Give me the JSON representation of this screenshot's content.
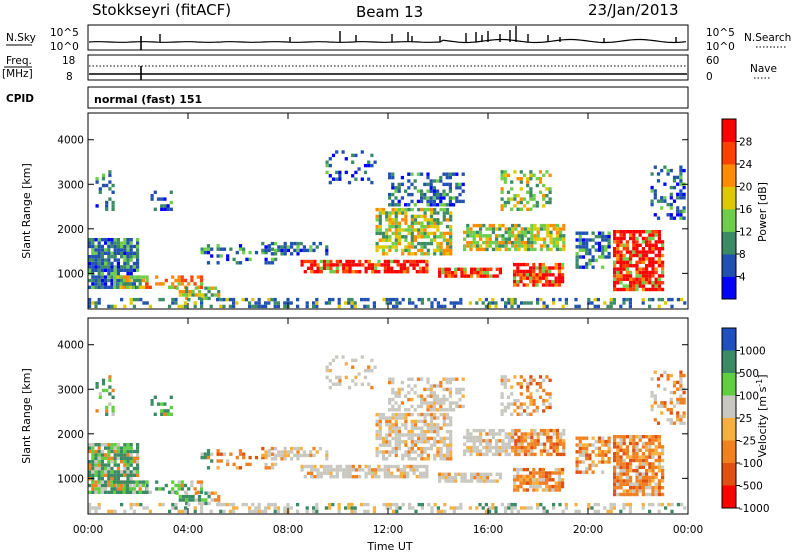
{
  "header": {
    "station": "Stokkseyri (fitACF)",
    "beam": "Beam 13",
    "date": "23/Jan/2013"
  },
  "panels": {
    "nsky_label": "N.Sky",
    "nsky_top": "10^5",
    "nsky_bottom": "10^0",
    "nsearch_label": "N.Search",
    "nsearch_top": "10^5",
    "nsearch_bottom": "10^0",
    "freq_label": "Freq.",
    "freq_unit": "[MHz]",
    "freq_top": "18",
    "freq_bottom": "8",
    "nave_label": "Nave",
    "nave_top": "60",
    "nave_bottom": "0",
    "cpid_label": "CPID",
    "cpid_value": "normal (fast) 151"
  },
  "chart_data": [
    {
      "type": "heatmap",
      "name": "power",
      "ylabel": "Slant Range [km]",
      "xlabel": "",
      "ylim": [
        200,
        4600
      ],
      "yticks": [
        "1000",
        "2000",
        "3000",
        "4000"
      ],
      "xlim": [
        "00:00",
        "24:00"
      ],
      "colorbar_label": "Power [dB]",
      "colorbar_ticks": [
        "4",
        "8",
        "12",
        "16",
        "20",
        "24",
        "28"
      ],
      "colors": [
        "#0000ff",
        "#2050b0",
        "#3a8a64",
        "#6ecd4a",
        "#e0c800",
        "#ff8c00",
        "#ff4000",
        "#ff0000"
      ]
    },
    {
      "type": "heatmap",
      "name": "velocity",
      "ylabel": "Slant Range [km]",
      "xlabel": "Time UT",
      "ylim": [
        200,
        4600
      ],
      "yticks": [
        "1000",
        "2000",
        "3000",
        "4000"
      ],
      "xticks": [
        "00:00",
        "04:00",
        "08:00",
        "12:00",
        "16:00",
        "20:00",
        "00:00"
      ],
      "colorbar_label": "Velocity [m s",
      "colorbar_label_exp": "-1",
      "colorbar_label_end": "]",
      "colorbar_ticks": [
        "1000",
        "500",
        "100",
        "25",
        "-25",
        "-100",
        "-500",
        "-1000"
      ],
      "colors": [
        "#2050c0",
        "#3a8a64",
        "#5fcf40",
        "#c8c8c0",
        "#f7b040",
        "#f08020",
        "#e05010",
        "#ff0000"
      ]
    }
  ]
}
